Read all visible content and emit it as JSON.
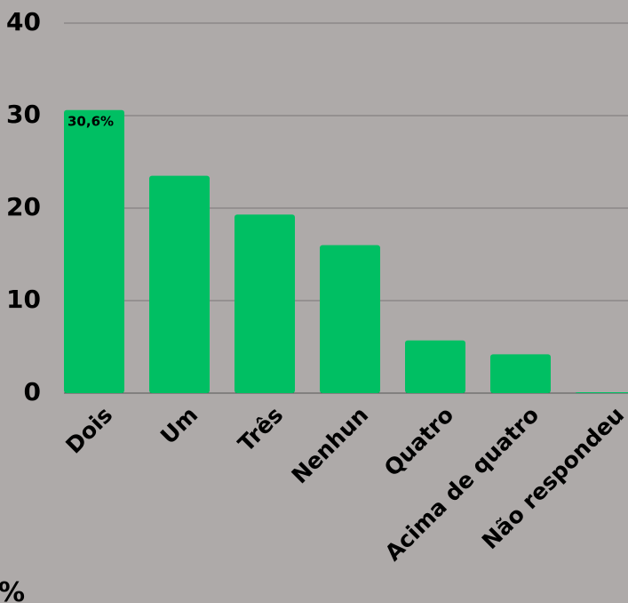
{
  "chart_data": {
    "type": "bar",
    "ylabel": "%",
    "categories": [
      "Dois",
      "Um",
      "Três",
      "Nenhun",
      "Quatro",
      "Acima de quatro",
      "Não respondeu"
    ],
    "values": [
      30.6,
      23.5,
      19.3,
      16.0,
      5.7,
      4.2,
      0.1
    ],
    "value_labels": [
      "30,6%",
      null,
      null,
      null,
      null,
      null,
      null
    ],
    "color": "#00bf63",
    "ylim": [
      0,
      40
    ],
    "yticks": [
      0,
      10,
      20,
      30,
      40
    ],
    "grid": true
  }
}
